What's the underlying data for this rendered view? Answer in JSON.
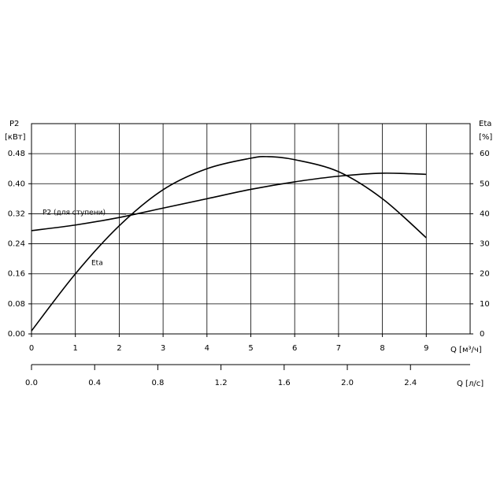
{
  "chart_data": {
    "type": "line",
    "y_label_top": "P2",
    "y_label_unit": "[кВт]",
    "y2_label_top": "Eta",
    "y2_label_unit": "[%]",
    "x_label": "Q [м³/ч]",
    "x2_label": "Q [л/с]",
    "annotations": [
      "P2 (для ступени)",
      "Eta"
    ],
    "xlim": [
      0,
      10
    ],
    "xticks": [
      0,
      1,
      2,
      3,
      4,
      5,
      6,
      7,
      8,
      9
    ],
    "x2lim": [
      0,
      2.7778
    ],
    "x2ticks": [
      {
        "value": 0,
        "label": "0.0"
      },
      0.4,
      0.8,
      1.2,
      1.6,
      {
        "value": 2,
        "label": "2.0"
      },
      2.4
    ],
    "ylim": [
      0,
      0.56
    ],
    "yticks": [
      {
        "value": 0,
        "label": "0.00"
      },
      {
        "value": 0.08,
        "label": "0.08"
      },
      {
        "value": 0.16,
        "label": "0.16"
      },
      {
        "value": 0.24,
        "label": "0.24"
      },
      {
        "value": 0.32,
        "label": "0.32"
      },
      {
        "value": 0.4,
        "label": "0.40"
      },
      {
        "value": 0.48,
        "label": "0.48"
      }
    ],
    "y2lim": [
      0,
      70
    ],
    "y2ticks": [
      0,
      10,
      20,
      30,
      40,
      50,
      60
    ],
    "grid": true,
    "series": [
      {
        "name": "P2",
        "color": "#000000",
        "axis": "y",
        "x": [
          0,
          1,
          2,
          3,
          4,
          5,
          6,
          7,
          8,
          9
        ],
        "values": [
          0.275,
          0.29,
          0.31,
          0.335,
          0.36,
          0.385,
          0.405,
          0.42,
          0.428,
          0.425
        ]
      },
      {
        "name": "Eta",
        "color": "#000000",
        "axis": "y2",
        "x": [
          0,
          1,
          2,
          3,
          4,
          5,
          5.4,
          6,
          7,
          8,
          9
        ],
        "values": [
          1,
          20,
          36,
          48,
          55,
          58.5,
          59,
          58,
          54,
          45,
          32
        ]
      }
    ]
  }
}
